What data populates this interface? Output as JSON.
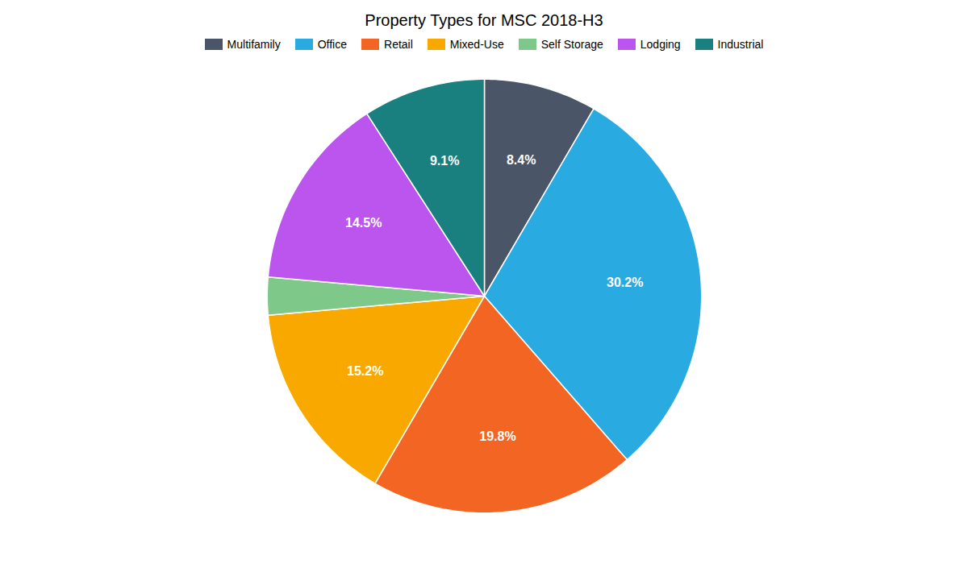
{
  "chart_data": {
    "type": "pie",
    "title": "Property Types for MSC 2018-H3",
    "categories": [
      "Multifamily",
      "Office",
      "Retail",
      "Mixed-Use",
      "Self Storage",
      "Lodging",
      "Industrial"
    ],
    "values": [
      8.4,
      30.2,
      19.8,
      15.2,
      2.8,
      14.5,
      9.1
    ],
    "value_labels": [
      "8.4%",
      "30.2%",
      "19.8%",
      "15.2%",
      null,
      "14.5%",
      "9.1%"
    ],
    "colors": [
      "#4a5568",
      "#29abe2",
      "#f26522",
      "#f9a800",
      "#7ec88a",
      "#bb55ee",
      "#1a7f7f"
    ],
    "data_labels": true,
    "legend": "top"
  }
}
